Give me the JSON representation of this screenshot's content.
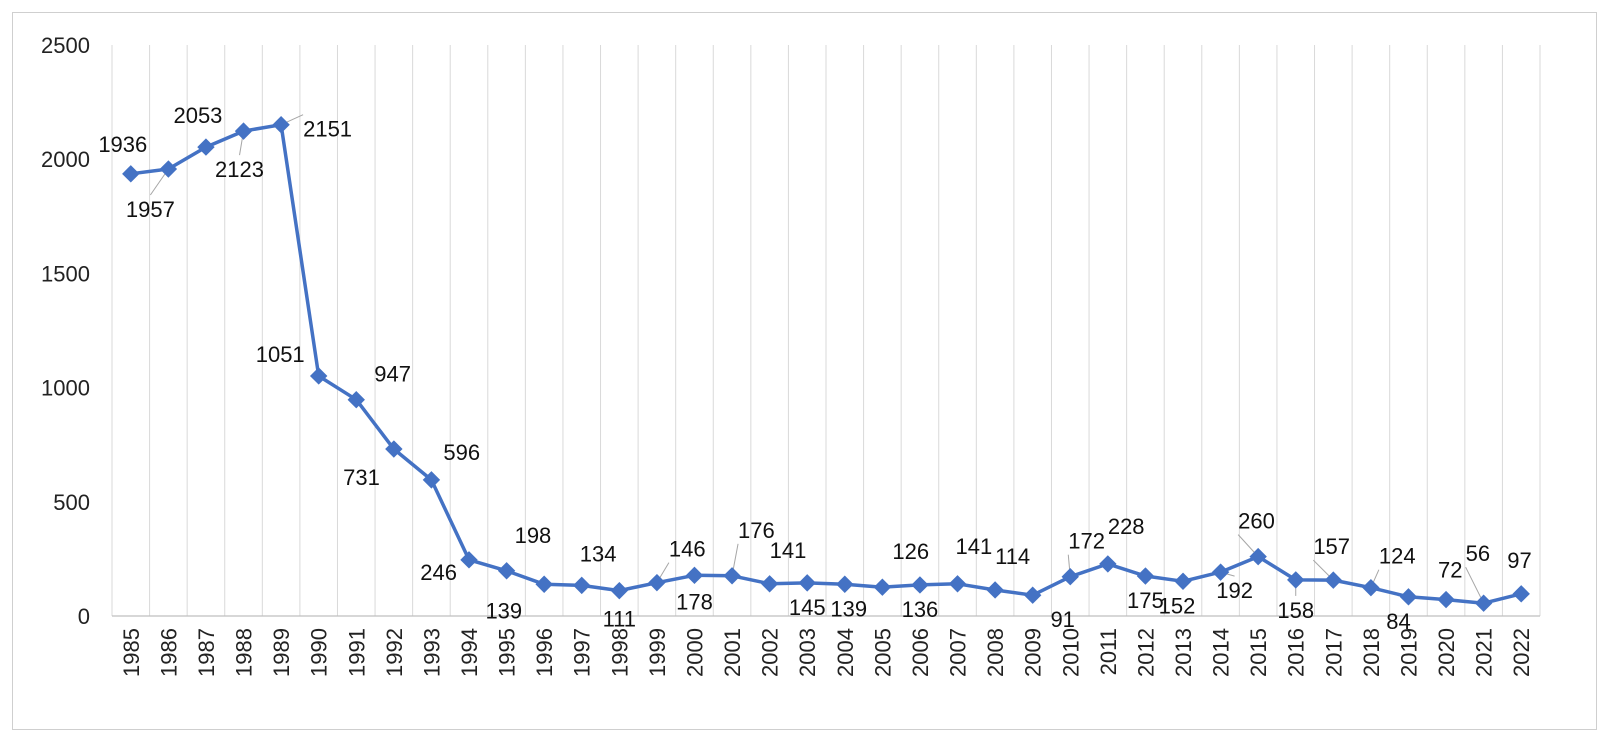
{
  "chart_data": {
    "type": "line",
    "title": "",
    "xlabel": "",
    "ylabel": "",
    "ylim": [
      0,
      2500
    ],
    "yticks": [
      "0",
      "500",
      "1000",
      "1500",
      "2000",
      "2500"
    ],
    "grid": "vertical",
    "legend": "none",
    "series_color": "#4472C4",
    "x": [
      "1985",
      "1986",
      "1987",
      "1988",
      "1989",
      "1990",
      "1991",
      "1992",
      "1993",
      "1994",
      "1995",
      "1996",
      "1997",
      "1998",
      "1999",
      "2000",
      "2001",
      "2002",
      "2003",
      "2004",
      "2005",
      "2006",
      "2007",
      "2008",
      "2009",
      "2010",
      "2011",
      "2012",
      "2013",
      "2014",
      "2015",
      "2016",
      "2017",
      "2018",
      "2019",
      "2020",
      "2021",
      "2022"
    ],
    "series": [
      {
        "values": [
          1936,
          1957,
          2053,
          2123,
          2151,
          1051,
          947,
          731,
          596,
          246,
          198,
          139,
          134,
          111,
          146,
          178,
          176,
          141,
          145,
          139,
          126,
          136,
          141,
          114,
          91,
          172,
          228,
          175,
          152,
          192,
          260,
          158,
          157,
          124,
          84,
          72,
          56,
          97
        ],
        "labels": [
          "1936",
          "1957",
          "2053",
          "2123",
          "2151",
          "1051",
          "947",
          "731",
          "596",
          "246",
          "198",
          "139",
          "134",
          "111",
          "146",
          "178",
          "176",
          "141",
          "145",
          "139",
          "126",
          "136",
          "141",
          "114",
          "91",
          "172",
          "228",
          "175",
          "152",
          "192",
          "260",
          "158",
          "157",
          "124",
          "84",
          "72",
          "56",
          "97"
        ]
      }
    ]
  }
}
